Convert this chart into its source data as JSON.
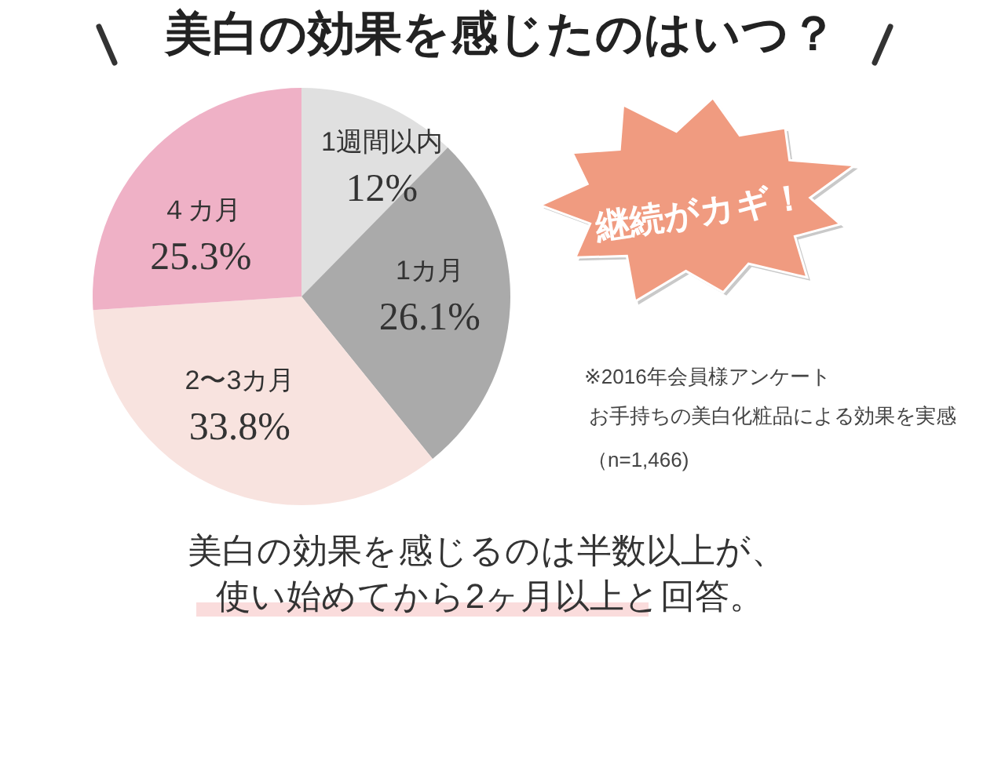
{
  "chart_data": {
    "type": "pie",
    "title": "美白の効果を感じたのはいつ？",
    "categories": [
      "1週間以内",
      "1カ月",
      "2〜3カ月",
      "４カ月"
    ],
    "values": [
      12,
      26.1,
      33.8,
      25.3
    ],
    "colors": [
      "#e0e0e0",
      "#aaaaaa",
      "#f8e3df",
      "#efb1c6"
    ],
    "value_labels": [
      "12%",
      "26.1%",
      "33.8%",
      "25.3%"
    ],
    "annotations": [
      "継続がカギ！",
      "※2016年会員様アンケート",
      "お手持ちの美白化粧品による効果を実感",
      "（n=1,466)",
      "美白の効果を感じるのは半数以上が、",
      "使い始めてから2ヶ月以上と回答。"
    ]
  }
}
